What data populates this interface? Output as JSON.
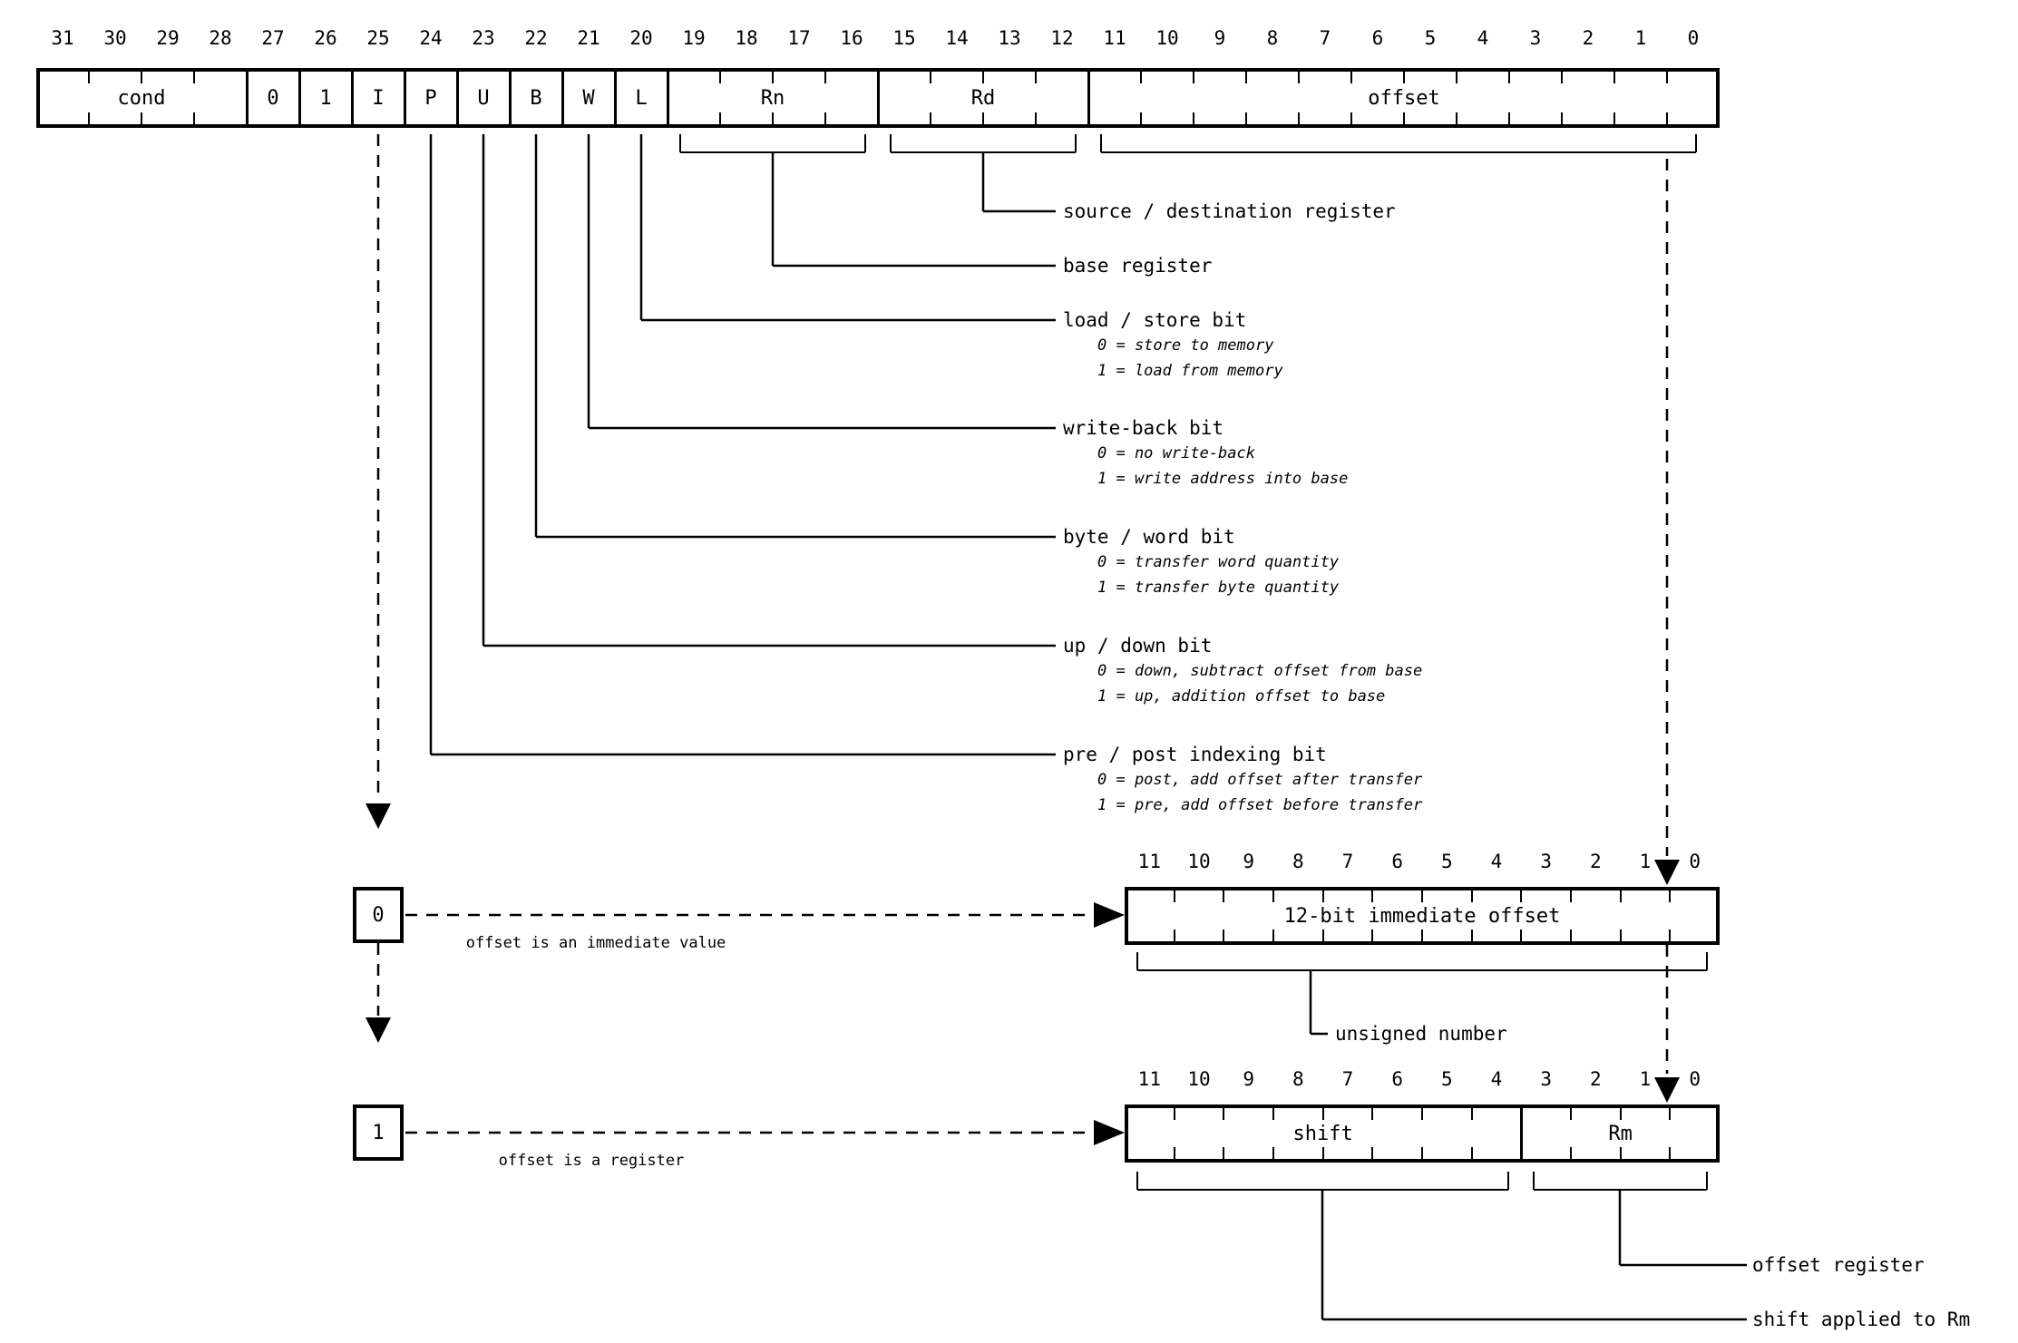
{
  "colors": {
    "ink": "#000000",
    "background": "#ffffff"
  },
  "main_register": {
    "bit_numbers": [
      "31",
      "30",
      "29",
      "28",
      "27",
      "26",
      "25",
      "24",
      "23",
      "22",
      "21",
      "20",
      "19",
      "18",
      "17",
      "16",
      "15",
      "14",
      "13",
      "12",
      "11",
      "10",
      "9",
      "8",
      "7",
      "6",
      "5",
      "4",
      "3",
      "2",
      "1",
      "0"
    ],
    "fields": [
      {
        "label": "cond",
        "bits": 4
      },
      {
        "label": "0",
        "bits": 1
      },
      {
        "label": "1",
        "bits": 1
      },
      {
        "label": "I",
        "bits": 1
      },
      {
        "label": "P",
        "bits": 1
      },
      {
        "label": "U",
        "bits": 1
      },
      {
        "label": "B",
        "bits": 1
      },
      {
        "label": "W",
        "bits": 1
      },
      {
        "label": "L",
        "bits": 1
      },
      {
        "label": "Rn",
        "bits": 4
      },
      {
        "label": "Rd",
        "bits": 4
      },
      {
        "label": "offset",
        "bits": 12
      }
    ]
  },
  "field_annotations": [
    {
      "key": "rd",
      "title": "source / destination register",
      "lines": []
    },
    {
      "key": "rn",
      "title": "base register",
      "lines": []
    },
    {
      "key": "load-store",
      "title": "load / store bit",
      "lines": [
        "0 = store to memory",
        "1 = load from memory"
      ]
    },
    {
      "key": "write-back",
      "title": "write-back bit",
      "lines": [
        "0 = no write-back",
        "1 = write address into base"
      ]
    },
    {
      "key": "byte-word",
      "title": "byte / word bit",
      "lines": [
        "0 = transfer word quantity",
        "1 = transfer byte quantity"
      ]
    },
    {
      "key": "up-down",
      "title": "up / down bit",
      "lines": [
        "0 = down, subtract offset from base",
        "1 = up, addition offset to base"
      ]
    },
    {
      "key": "pre-post",
      "title": "pre / post indexing bit",
      "lines": [
        "0 = post, add offset after transfer",
        "1 = pre, add offset before transfer"
      ]
    }
  ],
  "immediate_branch": {
    "selector_value": "0",
    "caption": "offset is an immediate value",
    "register": {
      "bit_numbers": [
        "11",
        "10",
        "9",
        "8",
        "7",
        "6",
        "5",
        "4",
        "3",
        "2",
        "1",
        "0"
      ],
      "fields": [
        {
          "label": "12-bit immediate offset",
          "bits": 12
        }
      ]
    },
    "annotation": "unsigned number"
  },
  "register_branch": {
    "selector_value": "1",
    "caption": "offset is a register",
    "register": {
      "bit_numbers": [
        "11",
        "10",
        "9",
        "8",
        "7",
        "6",
        "5",
        "4",
        "3",
        "2",
        "1",
        "0"
      ],
      "fields": [
        {
          "label": "shift",
          "bits": 8
        },
        {
          "label": "Rm",
          "bits": 4
        }
      ]
    },
    "rm_annotation": "offset register",
    "shift_annotation": "shift applied to Rm"
  }
}
